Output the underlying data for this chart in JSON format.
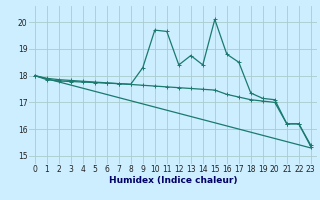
{
  "xlabel": "Humidex (Indice chaleur)",
  "background_color": "#cceeff",
  "grid_color": "#aacccc",
  "line_color": "#1a7a6e",
  "x_ticks": [
    0,
    1,
    2,
    3,
    4,
    5,
    6,
    7,
    8,
    9,
    10,
    11,
    12,
    13,
    14,
    15,
    16,
    17,
    18,
    19,
    20,
    21,
    22,
    23
  ],
  "y_ticks": [
    15,
    16,
    17,
    18,
    19,
    20
  ],
  "ylim": [
    14.7,
    20.6
  ],
  "xlim": [
    -0.5,
    23.5
  ],
  "series": [
    {
      "x": [
        0,
        1,
        2,
        3,
        4,
        5,
        6,
        7,
        8,
        9,
        10,
        11,
        12,
        13,
        14,
        15,
        16,
        17,
        18,
        19,
        20,
        21,
        22,
        23
      ],
      "y": [
        18.0,
        17.85,
        17.8,
        17.78,
        17.76,
        17.74,
        17.72,
        17.7,
        17.68,
        18.3,
        19.7,
        19.65,
        18.4,
        18.75,
        18.4,
        20.1,
        18.8,
        18.5,
        17.35,
        17.15,
        17.1,
        16.2,
        16.2,
        15.35
      ]
    },
    {
      "x": [
        0,
        1,
        2,
        3,
        4,
        5,
        6,
        7,
        8,
        9,
        10,
        11,
        12,
        13,
        14,
        15,
        16,
        17,
        18,
        19,
        20,
        21,
        22,
        23
      ],
      "y": [
        18.0,
        17.9,
        17.85,
        17.82,
        17.79,
        17.76,
        17.73,
        17.7,
        17.67,
        17.64,
        17.61,
        17.58,
        17.55,
        17.52,
        17.49,
        17.46,
        17.3,
        17.2,
        17.1,
        17.05,
        17.0,
        16.2,
        16.2,
        15.4
      ]
    },
    {
      "x": [
        0,
        23
      ],
      "y": [
        18.0,
        15.3
      ]
    }
  ]
}
